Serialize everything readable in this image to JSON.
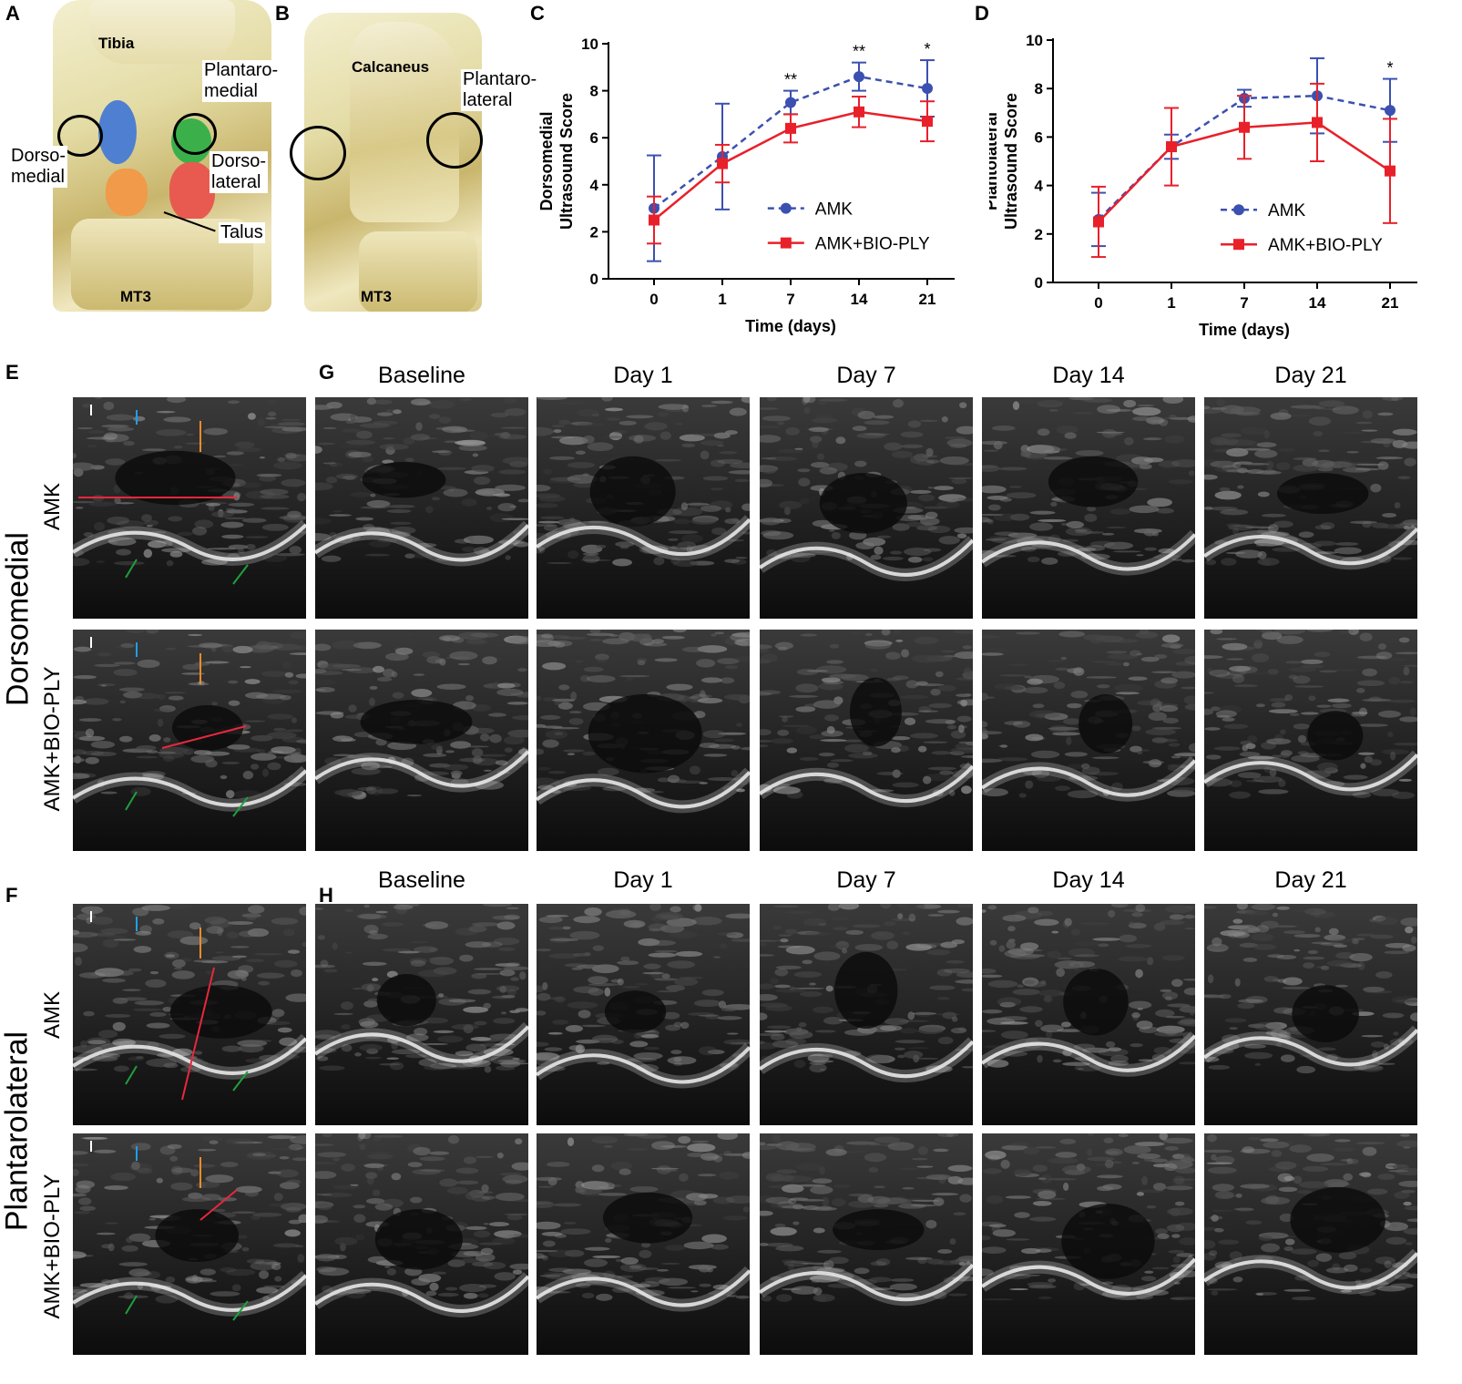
{
  "panel_labels": {
    "a": "A",
    "b": "B",
    "c": "C",
    "d": "D",
    "e": "E",
    "f": "F",
    "g": "G",
    "h": "H"
  },
  "anatomy": {
    "a": {
      "tibia": "Tibia",
      "plantaromedial": "Plantaro-\nmedial",
      "dorsomedial": "Dorso-\nmedial",
      "dorsolateral": "Dorso-\nlateral",
      "talus": "Talus",
      "mt3": "MT3"
    },
    "b": {
      "calcaneus": "Calcaneus",
      "plantarolateral": "Plantaro-\nlateral",
      "mt3": "MT3"
    },
    "colors": {
      "blue": "#4f7fd0",
      "green": "#3bb04a",
      "orange": "#f09a4a",
      "red": "#e85a4f"
    }
  },
  "ultrasound": {
    "col_titles": [
      "Baseline",
      "Day 1",
      "Day 7",
      "Day 14",
      "Day 21"
    ],
    "row_amk": "AMK",
    "row_bio": "AMK+BIO-PLY",
    "site_dorsomedial": "Dorsomedial",
    "site_plantarolateral": "Plantarolateral",
    "marker_colors": {
      "white": "#ffffff",
      "blue": "#1ea0e6",
      "orange": "#f08c28",
      "red": "#e8283c",
      "green": "#1ea03c"
    }
  },
  "chart_data": [
    {
      "type": "line",
      "panel": "C",
      "categories": [
        "0",
        "1",
        "7",
        "14",
        "21"
      ],
      "ylabel": "Dorsomedial\nUltrasound Score",
      "xlabel": "Time (days)",
      "ylim": [
        0,
        10
      ],
      "yticks": [
        "0",
        "2",
        "4",
        "6",
        "8",
        "10"
      ],
      "legend_position": "bottom-right",
      "series": [
        {
          "name": "AMK",
          "color": "#3b50b0",
          "dashed": true,
          "values": [
            3.0,
            5.2,
            7.5,
            8.6,
            8.1
          ],
          "err": [
            2.25,
            2.25,
            0.5,
            0.6,
            1.2
          ]
        },
        {
          "name": "AMK+BIO-PLY",
          "color": "#e8202a",
          "dashed": false,
          "values": [
            2.5,
            4.9,
            6.4,
            7.1,
            6.7
          ],
          "err": [
            1.0,
            0.8,
            0.6,
            0.65,
            0.85
          ]
        }
      ],
      "annotations": [
        "",
        "",
        "**",
        "**",
        "*"
      ]
    },
    {
      "type": "line",
      "panel": "D",
      "categories": [
        "0",
        "1",
        "7",
        "14",
        "21"
      ],
      "ylabel": "Plantolateral\nUltrasound Score",
      "xlabel": "Time (days)",
      "ylim": [
        0,
        10
      ],
      "yticks": [
        "0",
        "2",
        "4",
        "6",
        "8",
        "10"
      ],
      "legend_position": "bottom-right",
      "series": [
        {
          "name": "AMK",
          "color": "#3b50b0",
          "dashed": true,
          "values": [
            2.6,
            5.6,
            7.6,
            7.7,
            7.1
          ],
          "err": [
            1.1,
            0.5,
            0.35,
            1.55,
            1.3
          ]
        },
        {
          "name": "AMK+BIO-PLY",
          "color": "#e8202a",
          "dashed": false,
          "values": [
            2.5,
            5.6,
            6.4,
            6.6,
            4.6
          ],
          "err": [
            1.45,
            1.6,
            1.3,
            1.6,
            2.15
          ]
        }
      ],
      "annotations": [
        "",
        "",
        "",
        "",
        "*"
      ]
    }
  ]
}
